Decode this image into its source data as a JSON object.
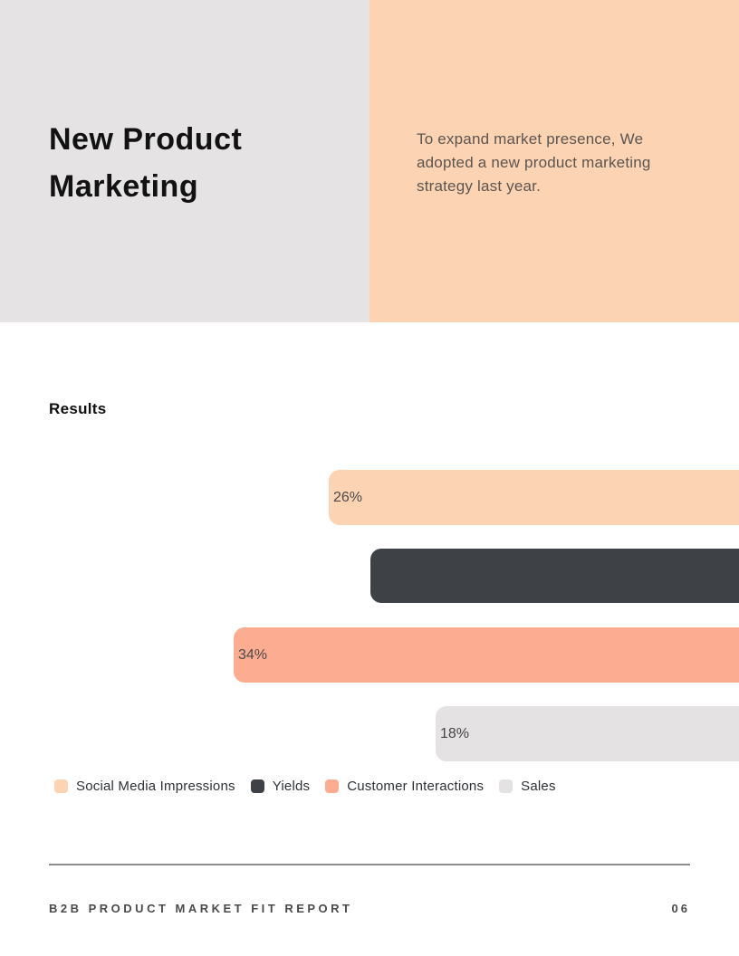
{
  "header": {
    "title": "New Product Marketing",
    "description": "To expand market presence, We adopted a new product marketing strategy last year.",
    "left_bg": "#e5e3e4",
    "right_bg": "#fdd4b3"
  },
  "section": {
    "title": "Results"
  },
  "chart_data": {
    "type": "bar",
    "orientation": "horizontal",
    "alignment": "bars anchored to right edge of page, clipped at page edge",
    "categories": [
      "Social Media Impressions",
      "Yields",
      "Customer Interactions",
      "Sales"
    ],
    "value_labels": [
      "26%",
      "",
      "34%",
      "18%"
    ],
    "values": [
      26,
      null,
      34,
      18
    ],
    "colors": [
      "#fcd4b3",
      "#3e4247",
      "#fcac90",
      "#e4e2e2"
    ],
    "legend_position": "bottom",
    "grid": false
  },
  "legend": {
    "items": [
      {
        "label": "Social Media Impressions",
        "color": "#fcd4b3"
      },
      {
        "label": "Yields",
        "color": "#3e4247"
      },
      {
        "label": "Customer Interactions",
        "color": "#fcac90"
      },
      {
        "label": "Sales",
        "color": "#e4e2e2"
      }
    ]
  },
  "footer": {
    "report_name": "B2B PRODUCT MARKET FIT REPORT",
    "page_number": "06"
  }
}
